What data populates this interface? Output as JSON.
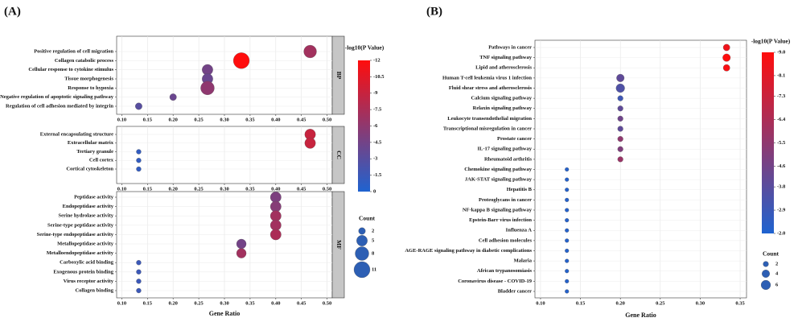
{
  "chart_data": [
    {
      "type": "scatter",
      "panel_label": "(A)",
      "x_label": "Gene Ratio",
      "xlim": [
        0.09,
        0.51
      ],
      "xticks": [
        {
          "value": 0.1,
          "label": "0.10"
        },
        0.15,
        {
          "value": 0.2,
          "label": "0.20"
        },
        0.25,
        {
          "value": 0.3,
          "label": "0.30"
        },
        0.35,
        {
          "value": 0.4,
          "label": "0.40"
        },
        0.45,
        {
          "value": 0.5,
          "label": "0.50"
        }
      ],
      "grid": true,
      "color_label": "-log10(P Value)",
      "color_lim": [
        0,
        -12
      ],
      "colors": [
        "#1f63d0",
        "#ff0d0d"
      ],
      "color_ticks": [
        0,
        -1.5,
        -3,
        -4.5,
        -6,
        -7.5,
        -9,
        -10.5,
        -12
      ],
      "size_label": "Count",
      "size_legend": [
        2,
        5,
        8,
        11
      ],
      "facets": [
        {
          "name": "BP",
          "categories": [
            "Positive regulation of cell migration",
            "Collagen catabolic process",
            "Cellular response to cytokine stimulus",
            "Tissue morphogenesis",
            "Response to hypoxia",
            "Negative regulation of apoptotic signaling pathway",
            "Regulation of cell adhesion mediated by integrin"
          ],
          "x": [
            0.467,
            0.333,
            0.267,
            0.267,
            0.267,
            0.2,
            0.133
          ],
          "sizes": [
            7,
            11,
            5,
            5,
            8,
            2,
            2
          ],
          "colors": [
            -7,
            -12,
            -4.5,
            -4,
            -6,
            -4,
            -3
          ]
        },
        {
          "name": "CC",
          "categories": [
            "External encapsulating structure",
            "Extracellular matrix",
            "Tertiary granule",
            "Cell cortex",
            "Cortical cytoskeleton"
          ],
          "x": [
            0.467,
            0.467,
            0.133,
            0.133,
            0.133
          ],
          "sizes": [
            5,
            5,
            1,
            1,
            1
          ],
          "colors": [
            -9,
            -9,
            -1,
            -1,
            -1
          ]
        },
        {
          "name": "MF",
          "categories": [
            "Peptidase activity",
            "Endopeptidase activity",
            "Serine hydrolase activity",
            "Serine-type peptidase activity",
            "Serine-type endopeptidase activity",
            "Metallopeptidase activity",
            "Metalloendopeptidase activity",
            "Carboxylic acid binding",
            "Exogenous protein binding",
            "Virus receptor activity",
            "Collagen binding"
          ],
          "x": [
            0.4,
            0.4,
            0.4,
            0.4,
            0.4,
            0.333,
            0.333,
            0.133,
            0.133,
            0.133,
            0.133
          ],
          "sizes": [
            5,
            5,
            5,
            5,
            5,
            4,
            4,
            1,
            1,
            1,
            1
          ],
          "colors": [
            -5,
            -5.5,
            -7,
            -7,
            -7.5,
            -4.5,
            -7,
            -1.5,
            -1.5,
            -1.5,
            -1.5
          ]
        }
      ]
    },
    {
      "type": "scatter",
      "panel_label": "(B)",
      "x_label": "Gene Ratio",
      "xlim": [
        0.093,
        0.358
      ],
      "xticks": [
        {
          "value": 0.1,
          "label": "0.10"
        },
        0.15,
        {
          "value": 0.2,
          "label": "0.20"
        },
        0.25,
        {
          "value": 0.3,
          "label": "0.30"
        },
        0.35
      ],
      "grid": true,
      "color_label": "-log10(P Value)",
      "color_lim": [
        -2,
        -9
      ],
      "colors": [
        "#1f63d0",
        "#ff0d0d"
      ],
      "color_ticks": [
        {
          "value": -2,
          "label": "-2.0"
        },
        -2.9,
        -3.8,
        -4.6,
        -5.5,
        -6.4,
        -7.3,
        -8.1,
        {
          "value": -9,
          "label": "-9.0"
        }
      ],
      "size_label": "Count",
      "size_legend": [
        2,
        4,
        6
      ],
      "facets": [
        {
          "categories": [
            "Pathways in cancer",
            "TNF signaling pathway",
            "Lipid and atherosclerosis",
            "Human T-cell leukemia virus 1 infection",
            "Fluid shear stress and atherosclerosis",
            "Calcium signaling pathway",
            "Relaxin signaling pathway",
            "Leukocyte transendothelial migration",
            "Transcriptional misregulation in cancer",
            "Prostate cancer",
            "IL-17 signaling pathway",
            "Rheumatoid arthritis",
            "Chemokine signaling pathway",
            "JAK-STAT signaling pathway",
            "Hepatitis B",
            "Proteoglycans in cancer",
            "NF-kappa B signaling pathway",
            "Epstein-Barr virus infection",
            "Influenza A",
            "Cell adhesion molecules",
            "AGE-RAGE signaling pathway in diabetic complications",
            "Malaria",
            "African trypanosomiasis",
            "Coronavirus disease - COVID-19",
            "Bladder cancer"
          ],
          "x": [
            0.333,
            0.333,
            0.333,
            0.2,
            0.2,
            0.2,
            0.2,
            0.2,
            0.2,
            0.2,
            0.2,
            0.2,
            0.133,
            0.133,
            0.133,
            0.133,
            0.133,
            0.133,
            0.133,
            0.133,
            0.133,
            0.133,
            0.133,
            0.133,
            0.133
          ],
          "sizes": [
            3,
            4,
            3,
            4,
            5,
            2,
            2,
            2,
            2,
            2,
            2,
            2,
            1,
            1,
            1,
            1,
            1,
            1,
            1,
            1,
            1,
            1,
            1,
            1,
            1
          ],
          "colors": [
            -8.5,
            -9,
            -8.8,
            -4,
            -3.5,
            -3,
            -4,
            -4.5,
            -4,
            -5.5,
            -5,
            -5.8,
            -2.2,
            -2.2,
            -2.2,
            -2.2,
            -2.2,
            -2.2,
            -2.2,
            -2.2,
            -2.2,
            -2.2,
            -2.2,
            -2.2,
            -2.2
          ]
        }
      ]
    }
  ]
}
